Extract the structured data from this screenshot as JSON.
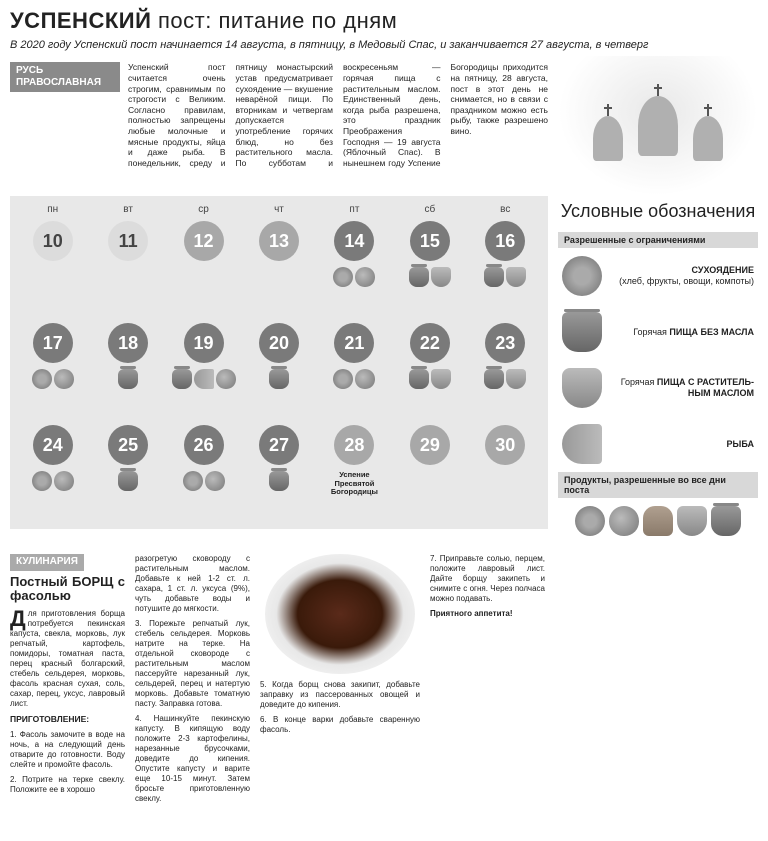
{
  "header": {
    "title_bold": "УСПЕНСКИЙ",
    "title_rest": " пост: питание по дням",
    "subtitle": "В 2020 году Успенский пост начинается 14 августа, в пятницу, в Медовый Спас, и заканчивается 27 августа, в четверг"
  },
  "intro": {
    "label": "РУСЬ ПРАВОСЛАВНАЯ",
    "text": "Успенский пост считается очень строгим, сравнимым по строгости с Великим. Согласно правилам, полностью запрещены любые молочные и мясные продукты, яйца и даже рыба. В понедельник, среду и пятницу монастырский устав предусматривает сухоядение — вкушение неварёной пищи. По вторникам и четвергам допускается употребление горячих блюд, но без растительного масла. По субботам и воскресеньям — горячая пища с растительным маслом. Единственный день, когда рыба разрешена, это праздник Преображения Господня — 19 августа (Яблочный Спас). В нынешнем году Успение Богородицы приходится на пятницу, 28 августа, пост в этот день не снимается, но в связи с праздником можно есть рыбу, также разрешено вино."
  },
  "calendar": {
    "weekdays": [
      "пн",
      "вт",
      "ср",
      "чт",
      "пт",
      "сб",
      "вс"
    ],
    "cells": [
      {
        "day": 10,
        "shade": "light",
        "icons": []
      },
      {
        "day": 11,
        "shade": "light",
        "icons": []
      },
      {
        "day": 12,
        "shade": "mid",
        "icons": []
      },
      {
        "day": 13,
        "shade": "mid",
        "icons": []
      },
      {
        "day": 14,
        "shade": "dark",
        "icons": [
          "cabbage",
          "apple"
        ]
      },
      {
        "day": 15,
        "shade": "dark",
        "icons": [
          "pot",
          "oil"
        ]
      },
      {
        "day": 16,
        "shade": "dark",
        "icons": [
          "pot",
          "oil"
        ]
      },
      {
        "day": 17,
        "shade": "dark",
        "icons": [
          "cabbage",
          "apple"
        ]
      },
      {
        "day": 18,
        "shade": "dark",
        "icons": [
          "pot"
        ]
      },
      {
        "day": 19,
        "shade": "dark",
        "icons": [
          "pot",
          "fish",
          "apple"
        ]
      },
      {
        "day": 20,
        "shade": "dark",
        "icons": [
          "pot"
        ]
      },
      {
        "day": 21,
        "shade": "dark",
        "icons": [
          "cabbage",
          "apple"
        ]
      },
      {
        "day": 22,
        "shade": "dark",
        "icons": [
          "pot",
          "oil"
        ]
      },
      {
        "day": 23,
        "shade": "dark",
        "icons": [
          "pot",
          "oil"
        ]
      },
      {
        "day": 24,
        "shade": "dark",
        "icons": [
          "cabbage",
          "apple"
        ]
      },
      {
        "day": 25,
        "shade": "dark",
        "icons": [
          "pot"
        ]
      },
      {
        "day": 26,
        "shade": "dark",
        "icons": [
          "cabbage",
          "apple"
        ]
      },
      {
        "day": 27,
        "shade": "dark",
        "icons": [
          "pot"
        ]
      },
      {
        "day": 28,
        "shade": "mid",
        "icons": [],
        "feast": "Успение Пресвятой Богородицы"
      },
      {
        "day": 29,
        "shade": "mid",
        "icons": []
      },
      {
        "day": 30,
        "shade": "mid",
        "icons": []
      }
    ]
  },
  "legend": {
    "title": "Условные обозначения",
    "section1": "Разрешенные с ограничениями",
    "items": [
      {
        "icon": "cabbage",
        "html": "<b>СУХОЯДЕНИЕ</b><br>(хлеб, фрукты, овощи, компоты)"
      },
      {
        "icon": "pot",
        "html": "Горячая <b>ПИЩА БЕЗ МАСЛА</b>"
      },
      {
        "icon": "oil",
        "html": "Горячая <b>ПИЩА С РАСТИТЕЛЬ-НЫМ МАСЛОМ</b>"
      },
      {
        "icon": "fish",
        "html": "<b>РЫБА</b>"
      }
    ],
    "section2": "Продукты, разрешенные во все дни поста",
    "all_icons": [
      "cabbage",
      "apple",
      "bread",
      "oil",
      "pot"
    ]
  },
  "recipe": {
    "label": "КУЛИНАРИЯ",
    "title": "Постный БОРЩ с фасолью",
    "col1": "ля приготовления борща потребуется пекинская капуста, свекла, морковь, лук репчатый, картофель, помидоры, томатная паста, перец красный болгарский, стебель сельдерея, морковь, фасоль красная сухая, соль, сахар, перец, уксус, лавровый лист.",
    "prep_h": "ПРИГОТОВЛЕНИЕ:",
    "step1": "1. Фасоль замочите в воде на ночь, а на следующий день отварите до готовности. Воду слейте и промойте фасоль.",
    "step2": "2. Потрите на терке свеклу. Положите ее в хорошо",
    "col2a": "разогретую сковороду с растительным маслом. Добавьте к ней 1-2 ст. л. сахара, 1 ст. л. уксуса (9%), чуть добавьте воды и потушите до мягкости.",
    "step3": "3. Порежьте репчатый лук, стебель сельдерея. Морковь натрите на терке. На отдельной сковороде с растительным маслом пассеруйте нарезанный лук, сельдерей, перец и натертую морковь. Добавьте томатную пасту. Заправка готова.",
    "step4": "4. Нашинкуйте пекинскую капусту. В кипящую воду положите 2-3 картофелины, нарезанные брусочками, доведите до кипения. Опустите капусту и варите еще 10-15 минут. Затем бросьте приготовленную свеклу.",
    "step5": "5. Когда борщ снова закипит, добавьте заправку из пассерованных овощей и доведите до кипения.",
    "step6": "6. В конце варки добавьте сваренную фасоль.",
    "step7": "7. Приправьте солью, перцем, положите лавровый лист. Дайте борщу закипеть и снимите с огня. Через полчаса можно подавать.",
    "ending": "Приятного аппетита!"
  },
  "colors": {
    "bg_cal": "#e8e8e8",
    "label_gray": "#8a8a8a"
  }
}
